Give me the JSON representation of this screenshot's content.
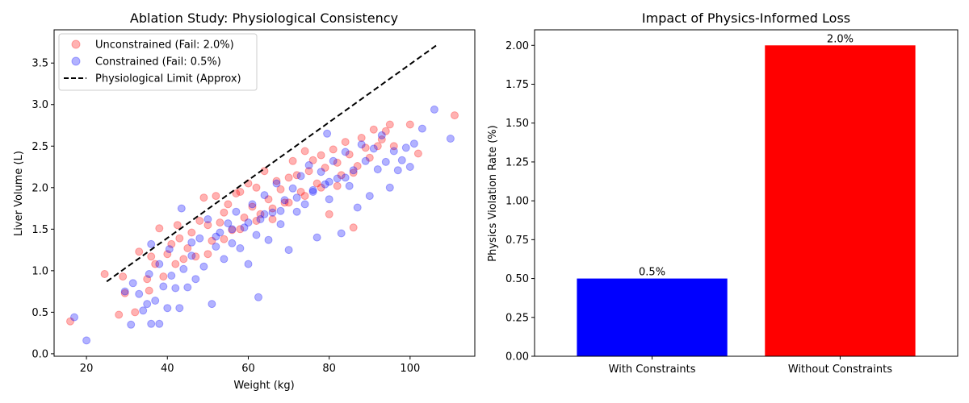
{
  "chart_data": [
    {
      "type": "scatter",
      "title": "Ablation Study: Physiological Consistency",
      "xlabel": "Weight (kg)",
      "ylabel": "Liver Volume (L)",
      "xlim": [
        12,
        116
      ],
      "ylim": [
        -0.03,
        3.9
      ],
      "xticks": [
        20,
        40,
        60,
        80,
        100
      ],
      "yticks": [
        0.0,
        0.5,
        1.0,
        1.5,
        2.0,
        2.5,
        3.0,
        3.5
      ],
      "legend_position": "top-left",
      "series": [
        {
          "name": "Unconstrained (Fail: 2.0%)",
          "color": "#ff0000",
          "points": [
            [
              16,
              0.39
            ],
            [
              24.5,
              0.96
            ],
            [
              28,
              0.47
            ],
            [
              29,
              0.93
            ],
            [
              29.5,
              0.73
            ],
            [
              32,
              0.5
            ],
            [
              33,
              1.23
            ],
            [
              35,
              0.9
            ],
            [
              35.5,
              0.76
            ],
            [
              36,
              1.17
            ],
            [
              37,
              1.08
            ],
            [
              38,
              1.51
            ],
            [
              39,
              0.93
            ],
            [
              40,
              1.2
            ],
            [
              41,
              1.32
            ],
            [
              42,
              1.08
            ],
            [
              42.5,
              1.55
            ],
            [
              43,
              1.39
            ],
            [
              45,
              1.27
            ],
            [
              46,
              1.46
            ],
            [
              47,
              1.17
            ],
            [
              48,
              1.6
            ],
            [
              49,
              1.88
            ],
            [
              50,
              1.55
            ],
            [
              51,
              1.36
            ],
            [
              52,
              1.9
            ],
            [
              53,
              1.58
            ],
            [
              54,
              1.7
            ],
            [
              55,
              1.8
            ],
            [
              56,
              1.49
            ],
            [
              57,
              1.93
            ],
            [
              58,
              1.95
            ],
            [
              59,
              1.64
            ],
            [
              60,
              2.05
            ],
            [
              61,
              1.77
            ],
            [
              62,
              2.0
            ],
            [
              63,
              1.68
            ],
            [
              64,
              2.2
            ],
            [
              65,
              1.86
            ],
            [
              66,
              1.75
            ],
            [
              67,
              2.08
            ],
            [
              68,
              1.98
            ],
            [
              69,
              1.82
            ],
            [
              70,
              2.12
            ],
            [
              71,
              2.32
            ],
            [
              72,
              2.15
            ],
            [
              73,
              1.95
            ],
            [
              74,
              2.44
            ],
            [
              75,
              2.2
            ],
            [
              76,
              2.33
            ],
            [
              77,
              2.05
            ],
            [
              78,
              2.39
            ],
            [
              79,
              2.24
            ],
            [
              80,
              1.68
            ],
            [
              81,
              2.46
            ],
            [
              82,
              2.3
            ],
            [
              83,
              2.15
            ],
            [
              84,
              2.55
            ],
            [
              85,
              2.4
            ],
            [
              86,
              1.52
            ],
            [
              87,
              2.26
            ],
            [
              88,
              2.6
            ],
            [
              89,
              2.48
            ],
            [
              90,
              2.36
            ],
            [
              91,
              2.7
            ],
            [
              92,
              2.5
            ],
            [
              93,
              2.58
            ],
            [
              94,
              2.68
            ],
            [
              95,
              2.76
            ],
            [
              96,
              2.5
            ],
            [
              100,
              2.76
            ],
            [
              102,
              2.41
            ],
            [
              111,
              2.87
            ],
            [
              44,
              1.14
            ],
            [
              50,
              1.2
            ],
            [
              54,
              1.38
            ],
            [
              58,
              1.5
            ],
            [
              62,
              1.6
            ],
            [
              66,
              1.62
            ],
            [
              70,
              1.82
            ],
            [
              74,
              1.9
            ],
            [
              78,
              2.0
            ],
            [
              82,
              2.02
            ],
            [
              86,
              2.18
            ]
          ]
        },
        {
          "name": "Constrained (Fail: 0.5%)",
          "color": "#0000ff",
          "points": [
            [
              17,
              0.44
            ],
            [
              20,
              0.16
            ],
            [
              29.5,
              0.75
            ],
            [
              31,
              0.35
            ],
            [
              31.5,
              0.85
            ],
            [
              33,
              0.72
            ],
            [
              34,
              0.52
            ],
            [
              35,
              0.6
            ],
            [
              35.5,
              0.96
            ],
            [
              36,
              0.36
            ],
            [
              36,
              1.32
            ],
            [
              37,
              0.64
            ],
            [
              38,
              0.36
            ],
            [
              38,
              1.08
            ],
            [
              39,
              0.81
            ],
            [
              40,
              0.55
            ],
            [
              40.5,
              1.26
            ],
            [
              41,
              0.94
            ],
            [
              42,
              0.79
            ],
            [
              43,
              0.55
            ],
            [
              43.5,
              1.75
            ],
            [
              44,
              1.02
            ],
            [
              45,
              0.8
            ],
            [
              46,
              1.18
            ],
            [
              47,
              0.9
            ],
            [
              48,
              1.39
            ],
            [
              49,
              1.05
            ],
            [
              50,
              1.62
            ],
            [
              51,
              0.6
            ],
            [
              52,
              1.29
            ],
            [
              53,
              1.46
            ],
            [
              54,
              1.14
            ],
            [
              55,
              1.57
            ],
            [
              56,
              1.33
            ],
            [
              57,
              1.71
            ],
            [
              58,
              1.27
            ],
            [
              59,
              1.52
            ],
            [
              60,
              1.08
            ],
            [
              61,
              1.8
            ],
            [
              62,
              1.43
            ],
            [
              62.5,
              0.68
            ],
            [
              63,
              1.62
            ],
            [
              64,
              1.91
            ],
            [
              65,
              1.37
            ],
            [
              66,
              1.7
            ],
            [
              67,
              2.05
            ],
            [
              68,
              1.56
            ],
            [
              69,
              1.85
            ],
            [
              70,
              1.25
            ],
            [
              71,
              1.99
            ],
            [
              72,
              1.71
            ],
            [
              73,
              2.14
            ],
            [
              74,
              1.8
            ],
            [
              75,
              2.27
            ],
            [
              76,
              1.95
            ],
            [
              77,
              1.4
            ],
            [
              78,
              2.19
            ],
            [
              79,
              2.04
            ],
            [
              79.5,
              2.65
            ],
            [
              80,
              1.86
            ],
            [
              81,
              2.32
            ],
            [
              82,
              2.11
            ],
            [
              83,
              1.45
            ],
            [
              84,
              2.43
            ],
            [
              85,
              2.02
            ],
            [
              86,
              2.21
            ],
            [
              87,
              1.76
            ],
            [
              88,
              2.52
            ],
            [
              89,
              2.32
            ],
            [
              90,
              1.9
            ],
            [
              91,
              2.47
            ],
            [
              92,
              2.22
            ],
            [
              93,
              2.63
            ],
            [
              94,
              2.31
            ],
            [
              95,
              2.0
            ],
            [
              96,
              2.44
            ],
            [
              97,
              2.21
            ],
            [
              98,
              2.33
            ],
            [
              99,
              2.48
            ],
            [
              100,
              2.25
            ],
            [
              101,
              2.53
            ],
            [
              103,
              2.71
            ],
            [
              106,
              2.94
            ],
            [
              110,
              2.59
            ],
            [
              46,
              1.34
            ],
            [
              52,
              1.41
            ],
            [
              56,
              1.5
            ],
            [
              60,
              1.58
            ],
            [
              64,
              1.68
            ],
            [
              68,
              1.72
            ],
            [
              72,
              1.88
            ],
            [
              76,
              1.97
            ],
            [
              80,
              2.07
            ],
            [
              84,
              2.12
            ]
          ]
        }
      ],
      "reference_line": {
        "name": "Physiological Limit (Approx)",
        "color": "#000000",
        "x": [
          25,
          107
        ],
        "y": [
          0.87,
          3.73
        ]
      }
    },
    {
      "type": "bar",
      "title": "Impact of Physics-Informed Loss",
      "ylabel": "Physics Violation Rate (%)",
      "categories": [
        "With Constraints",
        "Without Constraints"
      ],
      "values": [
        0.5,
        2.0
      ],
      "data_labels": [
        "0.5%",
        "2.0%"
      ],
      "colors": [
        "#0000ff",
        "#ff0000"
      ],
      "ylim": [
        0,
        2.1
      ],
      "yticks": [
        0.0,
        0.25,
        0.5,
        0.75,
        1.0,
        1.25,
        1.5,
        1.75,
        2.0
      ]
    }
  ]
}
